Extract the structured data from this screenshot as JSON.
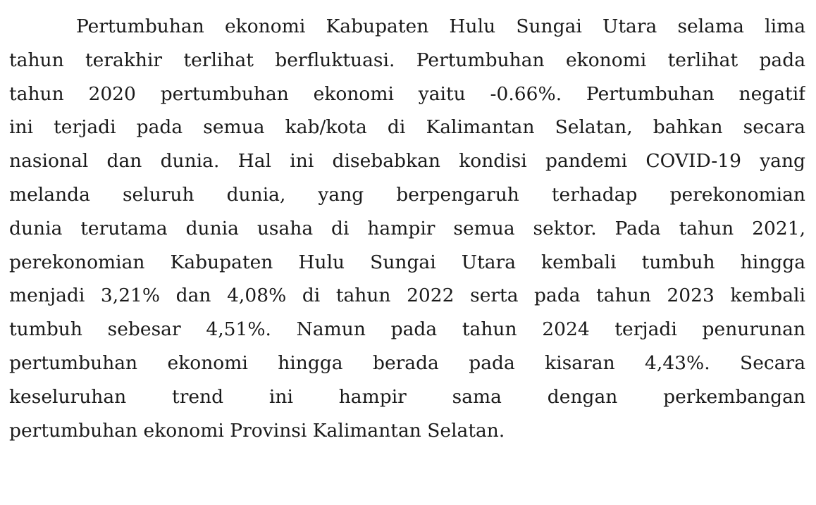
{
  "paragraph": {
    "lines": [
      "Pertumbuhan ekonomi Kabupaten Hulu Sungai Utara selama lima",
      "tahun terakhir terlihat berfluktuasi. Pertumbuhan ekonomi terlihat pada",
      "tahun 2020 pertumbuhan ekonomi yaitu -0.66%. Pertumbuhan negatif",
      "ini terjadi pada semua kab/kota di Kalimantan Selatan, bahkan secara",
      "nasional dan dunia. Hal ini disebabkan kondisi pandemi COVID-19 yang",
      "melanda seluruh dunia, yang berpengaruh terhadap perekonomian",
      "dunia terutama dunia usaha di hampir semua sektor. Pada tahun 2021,",
      "perekonomian Kabupaten Hulu Sungai Utara kembali tumbuh hingga",
      "menjadi 3,21% dan 4,08% di tahun 2022 serta pada tahun 2023 kembali",
      "tumbuh sebesar 4,51%. Namun pada tahun 2024 terjadi penurunan",
      "pertumbuhan ekonomi hingga berada pada kisaran 4,43%. Secara",
      "keseluruhan trend ini hampir sama dengan perkembangan",
      "pertumbuhan ekonomi Provinsi Kalimantan Selatan."
    ]
  }
}
